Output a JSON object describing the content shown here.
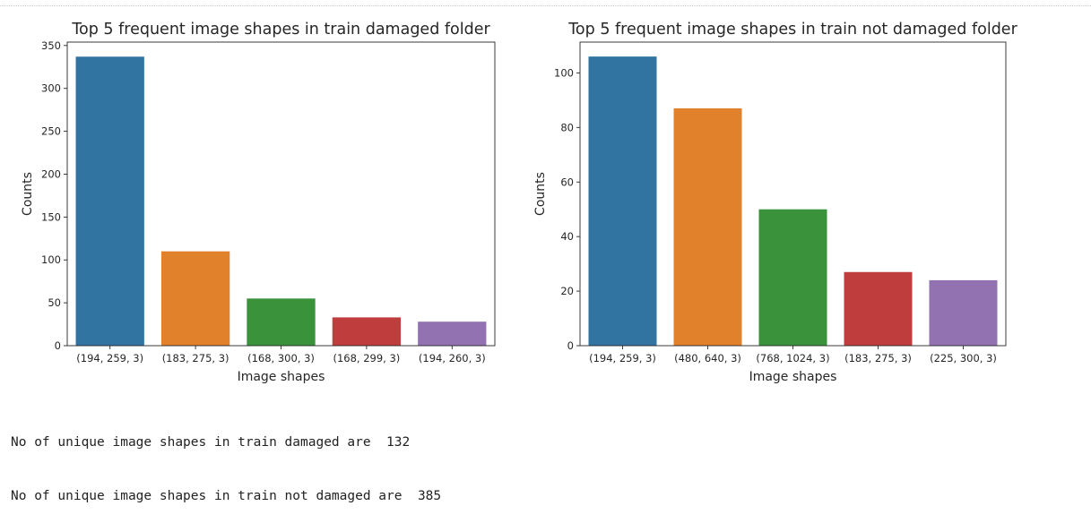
{
  "chart_data": [
    {
      "type": "bar",
      "title": "Top 5 frequent image shapes in train damaged folder",
      "xlabel": "Image shapes",
      "ylabel": "Counts",
      "categories": [
        "(194, 259, 3)",
        "(183, 275, 3)",
        "(168, 300, 3)",
        "(168, 299, 3)",
        "(194, 260, 3)"
      ],
      "values": [
        337,
        110,
        55,
        33,
        28
      ],
      "ylim": [
        0,
        354
      ],
      "yticks": [
        0,
        50,
        100,
        150,
        200,
        250,
        300,
        350
      ],
      "colors": [
        "#3274a1",
        "#e1812c",
        "#3a923a",
        "#c03d3e",
        "#9372b2"
      ],
      "grid": false
    },
    {
      "type": "bar",
      "title": "Top 5 frequent image shapes in train not damaged folder",
      "xlabel": "Image shapes",
      "ylabel": "Counts",
      "categories": [
        "(194, 259, 3)",
        "(480, 640, 3)",
        "(768, 1024, 3)",
        "(183, 275, 3)",
        "(225, 300, 3)"
      ],
      "values": [
        106,
        87,
        50,
        27,
        24
      ],
      "ylim": [
        0,
        111.3
      ],
      "yticks": [
        0,
        20,
        40,
        60,
        80,
        100
      ],
      "colors": [
        "#3274a1",
        "#e1812c",
        "#3a923a",
        "#c03d3e",
        "#9372b2"
      ],
      "grid": false
    }
  ],
  "output": {
    "line1": "No of unique image shapes in train damaged are  132",
    "line2": "No of unique image shapes in train not damaged are  385"
  }
}
